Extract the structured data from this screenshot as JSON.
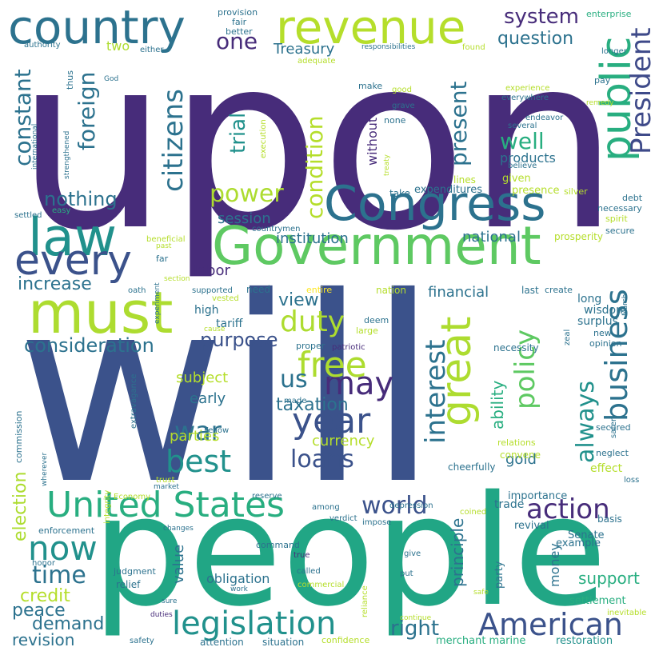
{
  "colors": {
    "background": "#ffffff",
    "palette": [
      "#472c7a",
      "#3b528b",
      "#2c728e",
      "#21918c",
      "#28ae80",
      "#5ec962",
      "#addc30",
      "#fde725"
    ]
  },
  "words": [
    {
      "text": "upon",
      "color": "#472c7a"
    },
    {
      "text": "will",
      "color": "#3b528b"
    },
    {
      "text": "people",
      "color": "#21a685"
    },
    {
      "text": "Government",
      "color": "#5ec962"
    },
    {
      "text": "Congress",
      "color": "#2c728e"
    },
    {
      "text": "must",
      "color": "#addc30"
    },
    {
      "text": "country",
      "color": "#2c728e"
    },
    {
      "text": "revenue",
      "color": "#b5de2b"
    },
    {
      "text": "law",
      "color": "#21918c"
    },
    {
      "text": "every",
      "color": "#3b528b"
    },
    {
      "text": "United States",
      "color": "#28ae80"
    },
    {
      "text": "public",
      "color": "#28ae80"
    },
    {
      "text": "President",
      "color": "#3e4a89"
    },
    {
      "text": "great",
      "color": "#addc30"
    },
    {
      "text": "American",
      "color": "#3b528b"
    },
    {
      "text": "legislation",
      "color": "#21918c"
    },
    {
      "text": "business",
      "color": "#2c728e"
    },
    {
      "text": "year",
      "color": "#3b528b"
    },
    {
      "text": "may",
      "color": "#472c7a"
    },
    {
      "text": "free",
      "color": "#addc30"
    },
    {
      "text": "citizens",
      "color": "#2c728e"
    },
    {
      "text": "constant",
      "color": "#2c728e"
    },
    {
      "text": "foreign",
      "color": "#2c728e"
    },
    {
      "text": "condition",
      "color": "#b5de2b"
    },
    {
      "text": "present",
      "color": "#2c728e"
    },
    {
      "text": "policy",
      "color": "#5ec962"
    },
    {
      "text": "always",
      "color": "#21918c"
    },
    {
      "text": "interest",
      "color": "#2c728e"
    },
    {
      "text": "action",
      "color": "#472c7a"
    },
    {
      "text": "world",
      "color": "#3b528b"
    },
    {
      "text": "now",
      "color": "#21918c"
    },
    {
      "text": "best",
      "color": "#21918c"
    },
    {
      "text": "loans",
      "color": "#3b528b"
    },
    {
      "text": "war",
      "color": "#2c728e"
    },
    {
      "text": "duty",
      "color": "#addc30"
    },
    {
      "text": "power",
      "color": "#addc30"
    },
    {
      "text": "nothing",
      "color": "#2c728e"
    },
    {
      "text": "time",
      "color": "#2c728e"
    },
    {
      "text": "peace",
      "color": "#2c728e"
    },
    {
      "text": "demand",
      "color": "#2c728e"
    },
    {
      "text": "revision",
      "color": "#2c728e"
    },
    {
      "text": "right",
      "color": "#2c728e"
    },
    {
      "text": "us",
      "color": "#2c728e"
    },
    {
      "text": "one",
      "color": "#472c7a"
    },
    {
      "text": "system",
      "color": "#472c7a"
    },
    {
      "text": "question",
      "color": "#2c728e"
    },
    {
      "text": "trial",
      "color": "#21918c"
    },
    {
      "text": "well",
      "color": "#28ae80"
    },
    {
      "text": "consideration",
      "color": "#2c728e"
    },
    {
      "text": "purpose",
      "color": "#3b528b"
    },
    {
      "text": "view",
      "color": "#2c728e"
    },
    {
      "text": "increase",
      "color": "#2c728e"
    },
    {
      "text": "labor",
      "color": "#472c7a"
    },
    {
      "text": "session",
      "color": "#2c728e"
    },
    {
      "text": "institution",
      "color": "#2c728e"
    },
    {
      "text": "national",
      "color": "#2c728e"
    },
    {
      "text": "financial",
      "color": "#2c728e"
    },
    {
      "text": "taxation",
      "color": "#2c728e"
    },
    {
      "text": "election",
      "color": "#addc30"
    },
    {
      "text": "credit",
      "color": "#b5de2b"
    },
    {
      "text": "support",
      "color": "#28ae80"
    },
    {
      "text": "principle",
      "color": "#2c728e"
    },
    {
      "text": "ability",
      "color": "#28ae80"
    },
    {
      "text": "Treasury",
      "color": "#2c728e"
    },
    {
      "text": "without",
      "color": "#472c7a"
    },
    {
      "text": "currency",
      "color": "#b5de2b"
    },
    {
      "text": "parties",
      "color": "#b5de2b"
    },
    {
      "text": "early",
      "color": "#2c728e"
    },
    {
      "text": "subject",
      "color": "#b5de2b"
    },
    {
      "text": "gold",
      "color": "#2c728e"
    },
    {
      "text": "money",
      "color": "#2c728e"
    },
    {
      "text": "value",
      "color": "#2c728e"
    },
    {
      "text": "obligation",
      "color": "#2c728e"
    },
    {
      "text": "products",
      "color": "#2c728e"
    },
    {
      "text": "two",
      "color": "#addc30"
    },
    {
      "text": "trade",
      "color": "#2c728e"
    },
    {
      "text": "tariff",
      "color": "#2c728e"
    },
    {
      "text": "high",
      "color": "#2c728e"
    },
    {
      "text": "surplus",
      "color": "#2c728e"
    },
    {
      "text": "effect",
      "color": "#b5de2b"
    },
    {
      "text": "long",
      "color": "#2c728e"
    },
    {
      "text": "wisdom",
      "color": "#2c728e"
    },
    {
      "text": "importance",
      "color": "#2c728e"
    },
    {
      "text": "revival",
      "color": "#2c728e"
    },
    {
      "text": "party",
      "color": "#2c728e"
    },
    {
      "text": "example",
      "color": "#2c728e"
    },
    {
      "text": "Senate",
      "color": "#2c728e"
    },
    {
      "text": "settlement",
      "color": "#28ae80"
    },
    {
      "text": "restoration",
      "color": "#21918c"
    },
    {
      "text": "merchant marine",
      "color": "#28ae80"
    },
    {
      "text": "attention",
      "color": "#2c728e"
    },
    {
      "text": "situation",
      "color": "#2c728e"
    },
    {
      "text": "confidence",
      "color": "#b5de2b"
    },
    {
      "text": "given",
      "color": "#b5de2b"
    },
    {
      "text": "presence",
      "color": "#b5de2b"
    },
    {
      "text": "expenditures",
      "color": "#2c728e"
    },
    {
      "text": "lines",
      "color": "#b5de2b"
    },
    {
      "text": "take",
      "color": "#2c728e"
    },
    {
      "text": "need",
      "color": "#2c728e"
    },
    {
      "text": "nation",
      "color": "#b5de2b"
    },
    {
      "text": "entire",
      "color": "#fde725"
    },
    {
      "text": "last",
      "color": "#2c728e"
    },
    {
      "text": "create",
      "color": "#2c728e"
    },
    {
      "text": "necessity",
      "color": "#2c728e"
    },
    {
      "text": "deem",
      "color": "#2c728e"
    },
    {
      "text": "large",
      "color": "#b5de2b"
    },
    {
      "text": "proper",
      "color": "#2c728e"
    },
    {
      "text": "patriotic",
      "color": "#472c7a"
    },
    {
      "text": "relations",
      "color": "#b5de2b"
    },
    {
      "text": "convene",
      "color": "#b5de2b"
    },
    {
      "text": "cheerfully",
      "color": "#2c728e"
    },
    {
      "text": "neglect",
      "color": "#2c728e"
    },
    {
      "text": "secured",
      "color": "#2c728e"
    },
    {
      "text": "safer",
      "color": "#2c728e"
    },
    {
      "text": "zeal",
      "color": "#2c728e"
    },
    {
      "text": "new",
      "color": "#2c728e"
    },
    {
      "text": "opinion",
      "color": "#2c728e"
    },
    {
      "text": "March",
      "color": "#2c728e"
    },
    {
      "text": "basis",
      "color": "#2c728e"
    },
    {
      "text": "loss",
      "color": "#2c728e"
    },
    {
      "text": "debt",
      "color": "#2c728e"
    },
    {
      "text": "necessary",
      "color": "#2c728e"
    },
    {
      "text": "spirit",
      "color": "#b5de2b"
    },
    {
      "text": "secure",
      "color": "#2c728e"
    },
    {
      "text": "prosperity",
      "color": "#b5de2b"
    },
    {
      "text": "silver",
      "color": "#b5de2b"
    },
    {
      "text": "enterprise",
      "color": "#28ae80"
    },
    {
      "text": "provision",
      "color": "#2c728e"
    },
    {
      "text": "fair",
      "color": "#2c728e"
    },
    {
      "text": "better",
      "color": "#2c728e"
    },
    {
      "text": "authority",
      "color": "#2c728e"
    },
    {
      "text": "either",
      "color": "#2c728e"
    },
    {
      "text": "thus",
      "color": "#2c728e"
    },
    {
      "text": "God",
      "color": "#2c728e"
    },
    {
      "text": "international",
      "color": "#2c728e"
    },
    {
      "text": "strengthened",
      "color": "#2c728e"
    },
    {
      "text": "adequate",
      "color": "#b5de2b"
    },
    {
      "text": "responsibilities",
      "color": "#2c728e"
    },
    {
      "text": "found",
      "color": "#b5de2b"
    },
    {
      "text": "longer",
      "color": "#2c728e"
    },
    {
      "text": "pay",
      "color": "#2c728e"
    },
    {
      "text": "experience",
      "color": "#b5de2b"
    },
    {
      "text": "everywhere",
      "color": "#2c728e"
    },
    {
      "text": "endeavor",
      "color": "#2c728e"
    },
    {
      "text": "remedy",
      "color": "#b5de2b"
    },
    {
      "text": "several",
      "color": "#2c728e"
    },
    {
      "text": "believe",
      "color": "#2c728e"
    },
    {
      "text": "make",
      "color": "#2c728e"
    },
    {
      "text": "good",
      "color": "#b5de2b"
    },
    {
      "text": "grave",
      "color": "#2c728e"
    },
    {
      "text": "none",
      "color": "#2c728e"
    },
    {
      "text": "treaty",
      "color": "#b5de2b"
    },
    {
      "text": "execution",
      "color": "#b5de2b"
    },
    {
      "text": "settled",
      "color": "#2c728e"
    },
    {
      "text": "easy",
      "color": "#28ae80"
    },
    {
      "text": "beneficial",
      "color": "#b5de2b"
    },
    {
      "text": "past",
      "color": "#b5de2b"
    },
    {
      "text": "countrymen",
      "color": "#2c728e"
    },
    {
      "text": "far",
      "color": "#2c728e"
    },
    {
      "text": "section",
      "color": "#b5de2b"
    },
    {
      "text": "experiment",
      "color": "#2c728e"
    },
    {
      "text": "oath",
      "color": "#2c728e"
    },
    {
      "text": "supported",
      "color": "#2c728e"
    },
    {
      "text": "vested",
      "color": "#b5de2b"
    },
    {
      "text": "cause",
      "color": "#b5de2b"
    },
    {
      "text": "commission",
      "color": "#2c728e"
    },
    {
      "text": "wherever",
      "color": "#2c728e"
    },
    {
      "text": "extravagance",
      "color": "#2c728e"
    },
    {
      "text": "made",
      "color": "#2c728e"
    },
    {
      "text": "Fellow",
      "color": "#2c728e"
    },
    {
      "text": "integrity",
      "color": "#b5de2b"
    },
    {
      "text": "trust",
      "color": "#b5de2b"
    },
    {
      "text": "market",
      "color": "#2c728e"
    },
    {
      "text": "Economy",
      "color": "#b5de2b"
    },
    {
      "text": "reserve",
      "color": "#2c728e"
    },
    {
      "text": "among",
      "color": "#2c728e"
    },
    {
      "text": "verdict",
      "color": "#2c728e"
    },
    {
      "text": "depression",
      "color": "#2c728e"
    },
    {
      "text": "coined",
      "color": "#b5de2b"
    },
    {
      "text": "impose",
      "color": "#2c728e"
    },
    {
      "text": "enforcement",
      "color": "#2c728e"
    },
    {
      "text": "changes",
      "color": "#2c728e"
    },
    {
      "text": "command",
      "color": "#2c728e"
    },
    {
      "text": "honor",
      "color": "#2c728e"
    },
    {
      "text": "judgment",
      "color": "#2c728e"
    },
    {
      "text": "relief",
      "color": "#2c728e"
    },
    {
      "text": "true",
      "color": "#472c7a"
    },
    {
      "text": "called",
      "color": "#2c728e"
    },
    {
      "text": "reliance",
      "color": "#b5de2b"
    },
    {
      "text": "give",
      "color": "#2c728e"
    },
    {
      "text": "put",
      "color": "#2c728e"
    },
    {
      "text": "safe",
      "color": "#b5de2b"
    },
    {
      "text": "sure",
      "color": "#2c728e"
    },
    {
      "text": "work",
      "color": "#2c728e"
    },
    {
      "text": "commercial",
      "color": "#b5de2b"
    },
    {
      "text": "duties",
      "color": "#472c7a"
    },
    {
      "text": "continue",
      "color": "#b5de2b"
    },
    {
      "text": "inevitable",
      "color": "#b5de2b"
    },
    {
      "text": "safety",
      "color": "#2c728e"
    },
    {
      "text": "preserved",
      "color": "#b5de2b"
    }
  ]
}
